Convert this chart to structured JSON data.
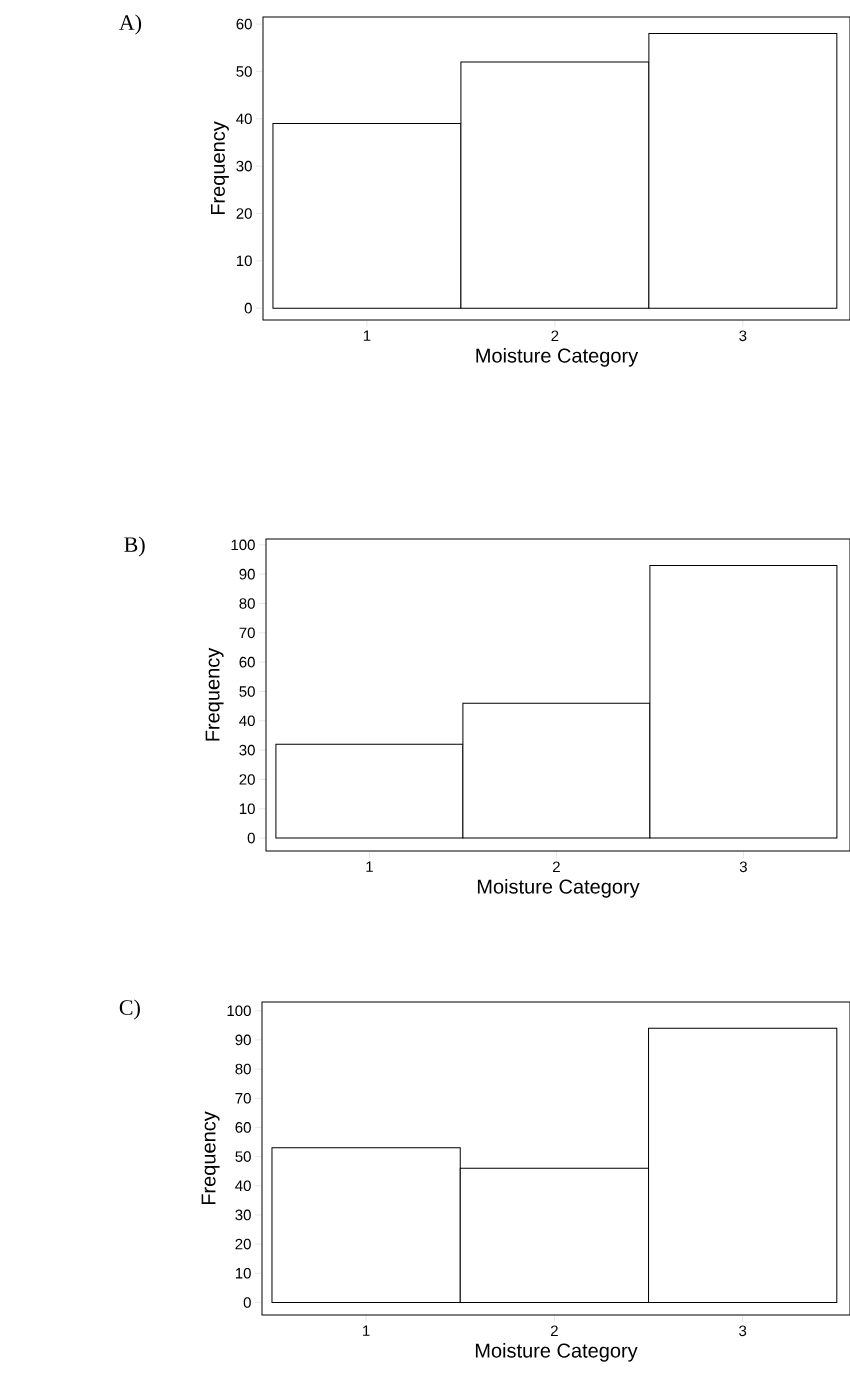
{
  "chart_data": [
    {
      "type": "bar",
      "title": "A)",
      "xlabel": "Moisture Category",
      "ylabel": "Frequency",
      "categories": [
        "1",
        "2",
        "3"
      ],
      "values": [
        39,
        52,
        58
      ],
      "color": "#ffffff",
      "ylim": [
        -2.5,
        61.5
      ],
      "yticks": [
        0,
        10,
        20,
        30,
        40,
        50,
        60
      ]
    },
    {
      "type": "bar",
      "title": "B)",
      "xlabel": "Moisture Category",
      "ylabel": "Frequency",
      "categories": [
        "1",
        "2",
        "3"
      ],
      "values": [
        32,
        46,
        93
      ],
      "color": "#ffffff",
      "ylim": [
        -4.4,
        102
      ],
      "yticks": [
        0,
        10,
        20,
        30,
        40,
        50,
        60,
        70,
        80,
        90,
        100
      ]
    },
    {
      "type": "bar",
      "title": "C)",
      "xlabel": "Moisture Category",
      "ylabel": "Frequency",
      "categories": [
        "1",
        "2",
        "3"
      ],
      "values": [
        53,
        46,
        94
      ],
      "color": "#ffffff",
      "ylim": [
        -4.3,
        103
      ],
      "yticks": [
        0,
        10,
        20,
        30,
        40,
        50,
        60,
        70,
        80,
        90,
        100
      ]
    }
  ]
}
